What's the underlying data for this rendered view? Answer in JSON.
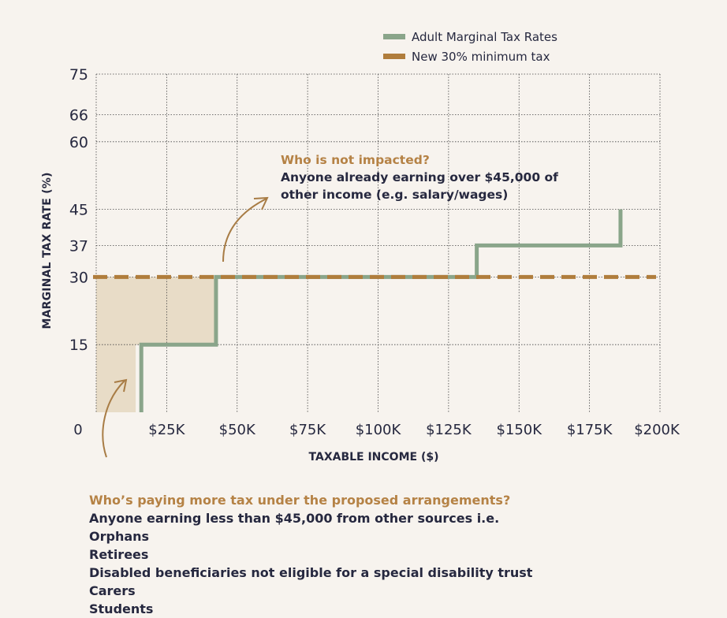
{
  "chart_data": {
    "type": "line",
    "xlabel": "TAXABLE INCOME ($)",
    "ylabel": "MARGINAL TAX RATE (%)",
    "xlim": [
      0,
      200000
    ],
    "ylim": [
      0,
      75
    ],
    "x_ticks": [
      {
        "value": 0,
        "label": "0"
      },
      {
        "value": 25000,
        "label": "$25K"
      },
      {
        "value": 50000,
        "label": "$50K"
      },
      {
        "value": 75000,
        "label": "$75K"
      },
      {
        "value": 100000,
        "label": "$100K"
      },
      {
        "value": 125000,
        "label": "$125K"
      },
      {
        "value": 150000,
        "label": "$150K"
      },
      {
        "value": 175000,
        "label": "$175K"
      },
      {
        "value": 200000,
        "label": "$200K"
      }
    ],
    "y_ticks": [
      {
        "value": 15,
        "label": "15"
      },
      {
        "value": 30,
        "label": "30"
      },
      {
        "value": 37,
        "label": "37"
      },
      {
        "value": 45,
        "label": "45"
      },
      {
        "value": 60,
        "label": "60"
      },
      {
        "value": 66,
        "label": "66"
      },
      {
        "value": 75,
        "label": "75"
      }
    ],
    "grid": true,
    "legend_position": "top-right",
    "series": [
      {
        "name": "Adult Marginal Tax Rates",
        "color": "#8aa58a",
        "style": "step",
        "points": [
          [
            16000,
            0
          ],
          [
            16000,
            15
          ],
          [
            42500,
            15
          ],
          [
            42500,
            30
          ],
          [
            135000,
            30
          ],
          [
            135000,
            37
          ],
          [
            186000,
            37
          ],
          [
            186000,
            45
          ]
        ]
      },
      {
        "name": "New 30% minimum tax",
        "color": "#b07d3c",
        "style": "dashed",
        "points": [
          [
            0,
            30
          ],
          [
            200000,
            30
          ]
        ]
      }
    ],
    "shaded_region": {
      "color": "#e8dcc7",
      "points": [
        [
          0,
          0
        ],
        [
          14000,
          0
        ],
        [
          14000,
          15
        ],
        [
          42500,
          15
        ],
        [
          42500,
          30
        ],
        [
          0,
          30
        ]
      ]
    }
  },
  "annotation": {
    "title": "Who is not impacted?",
    "lines": [
      "Anyone already earning over $45,000 of",
      "other income (e.g. salary/wages)"
    ]
  },
  "bottom_text": {
    "title": "Who’s paying more tax under the proposed arrangements?",
    "lines": [
      "Anyone earning less than $45,000 from other sources i.e.",
      "Orphans",
      "Retirees",
      "Disabled beneficiaries not eligible for a special disability trust",
      "Carers",
      "Students"
    ]
  },
  "colors": {
    "background": "#f7f3ee",
    "text": "#26283f",
    "accent": "#b58245",
    "arrow": "#a87c45"
  }
}
